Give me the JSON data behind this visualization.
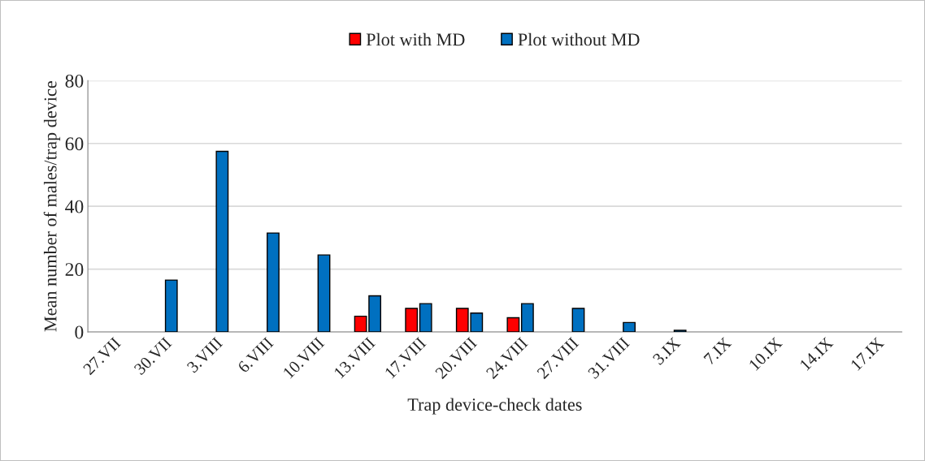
{
  "chart_data": {
    "type": "bar",
    "xlabel": "Trap device-check dates",
    "ylabel": "Mean number of males/trap device",
    "categories": [
      "27.VII",
      "30.VII",
      "3.VIII",
      "6.VIII",
      "10.VIII",
      "13.VIII",
      "17.VIII",
      "20.VIII",
      "24.VIII",
      "27.VIII",
      "31.VIII",
      "3.IX",
      "7.IX",
      "10.IX",
      "14.IX",
      "17.IX"
    ],
    "series": [
      {
        "name": "Plot with MD",
        "color": "#ff0000",
        "values": [
          null,
          null,
          null,
          null,
          null,
          5,
          7.5,
          7.5,
          4.5,
          null,
          null,
          null,
          null,
          null,
          null,
          null
        ]
      },
      {
        "name": "Plot without MD",
        "color": "#0070c0",
        "values": [
          null,
          16.5,
          57.5,
          31.5,
          24.5,
          11.5,
          9,
          6,
          9,
          7.5,
          3,
          0.5,
          null,
          null,
          null,
          null
        ]
      }
    ],
    "ylim": [
      0,
      80
    ],
    "yticks": [
      0,
      20,
      40,
      60,
      80
    ],
    "grid": "y",
    "legend": "top"
  }
}
